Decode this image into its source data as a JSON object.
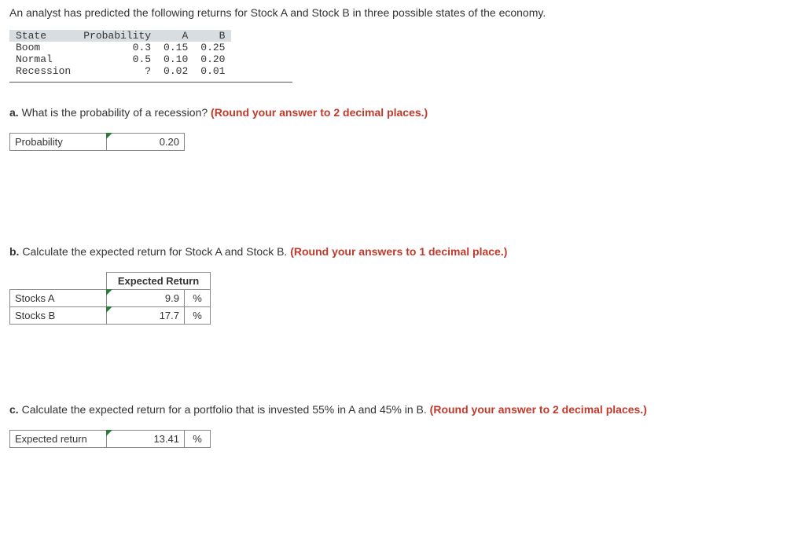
{
  "intro_text": "An analyst has predicted the following returns for Stock A and Stock B in three possible states of the economy.",
  "data_table": {
    "headers": [
      "State",
      "Probability",
      "A",
      "B"
    ],
    "rows": [
      [
        "Boom",
        "0.3",
        "0.15",
        "0.25"
      ],
      [
        "Normal",
        "0.5",
        "0.10",
        "0.20"
      ],
      [
        "Recession",
        "?",
        "0.02",
        "0.01"
      ]
    ]
  },
  "qa": {
    "prefix": "a.",
    "text": " What is the probability of a recession? ",
    "hint": "(Round your answer to 2 decimal places.)",
    "label": "Probability",
    "value": "0.20"
  },
  "qb": {
    "prefix": "b.",
    "text": " Calculate the expected return for Stock A and Stock B. ",
    "hint": "(Round your answers to 1 decimal place.)",
    "header": "Expected Return",
    "rows": [
      {
        "label": "Stocks A",
        "value": "9.9",
        "unit": "%"
      },
      {
        "label": "Stocks B",
        "value": "17.7",
        "unit": "%"
      }
    ]
  },
  "qc": {
    "prefix": "c.",
    "text": " Calculate the expected return for a portfolio that is invested 55% in A and 45% in B. ",
    "hint": "(Round your answer to 2 decimal places.)",
    "label": "Expected return",
    "value": "13.41",
    "unit": "%"
  }
}
